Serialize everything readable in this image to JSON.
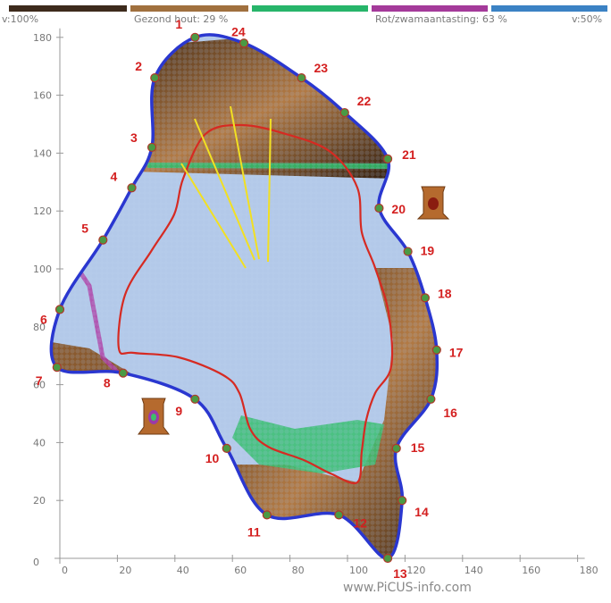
{
  "legend": {
    "left": "v:100%",
    "sound_wood": "Gezond hout: 29 %",
    "decay": "Rot/zwamaantasting: 63 %",
    "right": "v:50%",
    "colors": [
      "#3d2a1c",
      "#a0703e",
      "#27b56a",
      "#a43a9a",
      "#3b82c4"
    ]
  },
  "watermark": "www.PiCUS-info.com",
  "chart_data": {
    "type": "scatter",
    "title": "",
    "xlabel": "",
    "ylabel": "",
    "xlim": [
      0,
      180
    ],
    "ylim": [
      0,
      180
    ],
    "x_ticks": [
      0,
      20,
      40,
      60,
      80,
      100,
      120,
      140,
      160,
      180
    ],
    "y_ticks": [
      0,
      20,
      40,
      60,
      80,
      100,
      120,
      140,
      160,
      180
    ],
    "grid": false,
    "measurement_points": [
      {
        "label": "1",
        "x": 47,
        "y": 180
      },
      {
        "label": "2",
        "x": 33,
        "y": 166
      },
      {
        "label": "3",
        "x": 32,
        "y": 142
      },
      {
        "label": "4",
        "x": 25,
        "y": 128
      },
      {
        "label": "5",
        "x": 15,
        "y": 110
      },
      {
        "label": "6",
        "x": 0,
        "y": 86
      },
      {
        "label": "7",
        "x": -1,
        "y": 66
      },
      {
        "label": "8",
        "x": 22,
        "y": 64
      },
      {
        "label": "9",
        "x": 47,
        "y": 55
      },
      {
        "label": "10",
        "x": 58,
        "y": 38
      },
      {
        "label": "11",
        "x": 72,
        "y": 15
      },
      {
        "label": "12",
        "x": 97,
        "y": 15
      },
      {
        "label": "13",
        "x": 114,
        "y": 0
      },
      {
        "label": "14",
        "x": 119,
        "y": 20
      },
      {
        "label": "15",
        "x": 117,
        "y": 38
      },
      {
        "label": "16",
        "x": 129,
        "y": 55
      },
      {
        "label": "17",
        "x": 131,
        "y": 72
      },
      {
        "label": "18",
        "x": 127,
        "y": 90
      },
      {
        "label": "19",
        "x": 121,
        "y": 106
      },
      {
        "label": "20",
        "x": 111,
        "y": 121
      },
      {
        "label": "21",
        "x": 114,
        "y": 138
      },
      {
        "label": "22",
        "x": 99,
        "y": 154
      },
      {
        "label": "23",
        "x": 84,
        "y": 166
      },
      {
        "label": "24",
        "x": 64,
        "y": 178
      }
    ],
    "series": [
      {
        "name": "Gezond hout",
        "color": "#a0703e",
        "percent": 29
      },
      {
        "name": "Rot/zwamaantasting",
        "color": "#a43a9a",
        "percent": 63
      }
    ],
    "cross_section_color": "#2a37d0",
    "sound_zone_outline_color": "#d62a22",
    "probe_lines_color": "#f2e022"
  }
}
